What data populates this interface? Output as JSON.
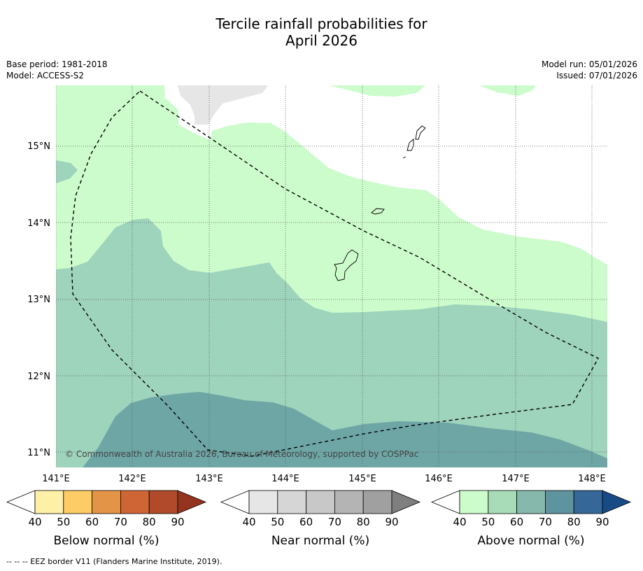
{
  "title": {
    "line1": "Tercile rainfall probabilities for",
    "line2": "April 2026"
  },
  "meta": {
    "base_period": "Base period: 1981-2018",
    "model": "Model: ACCESS-S2",
    "model_run": "Model run: 05/01/2026",
    "issued": "Issued: 07/01/2026"
  },
  "map": {
    "lon_labels": [
      "141°E",
      "142°E",
      "143°E",
      "144°E",
      "145°E",
      "146°E",
      "147°E",
      "148°E"
    ],
    "lat_labels": [
      "15°N",
      "14°N",
      "13°N",
      "12°N",
      "11°N"
    ],
    "copyright": "© Commonwealth of Australia 2026, Bureau of Meteorology, supported by COSPPac",
    "colors": {
      "above_40_50": "#ccfccc",
      "above_50_60": "#9ed3bc",
      "above_60_70": "#6ea6a6",
      "near_40_50": "#e6e6e6",
      "ocean_neutral": "#ffffff"
    }
  },
  "legend": {
    "ticks": [
      "40",
      "50",
      "60",
      "70",
      "80",
      "90"
    ],
    "below": {
      "label": "Below normal (%)",
      "colors": [
        "#fff0a8",
        "#fdcc66",
        "#e39447",
        "#cf6535",
        "#b14a2a",
        "#94341f"
      ]
    },
    "near": {
      "label": "Near normal (%)",
      "colors": [
        "#e6e6e6",
        "#d6d6d6",
        "#c8c8c8",
        "#b4b4b4",
        "#a0a0a0",
        "#7f7f7f"
      ]
    },
    "above": {
      "label": "Above normal (%)",
      "colors": [
        "#ccfccc",
        "#a8dcb8",
        "#86b8ac",
        "#5e949e",
        "#356799",
        "#184a85"
      ]
    }
  },
  "footer": "--  --  -- EEZ border V11 (Flanders Marine Institute, 2019)."
}
